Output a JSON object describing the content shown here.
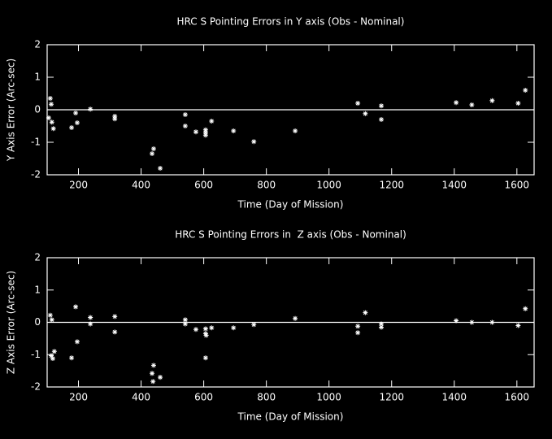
{
  "chart_data": [
    {
      "type": "scatter",
      "title": "HRC S Pointing Errors in Y axis (Obs - Nominal)",
      "x_label": "Time (Day of Mission)",
      "y_label": "Y Axis Error (Arc-sec)",
      "x": [
        110,
        113,
        115,
        105,
        120,
        178,
        191,
        196,
        238,
        316,
        316,
        435,
        440,
        461,
        541,
        541,
        575,
        606,
        606,
        606,
        625,
        695,
        760,
        892,
        1092,
        1116,
        1167,
        1167,
        1406,
        1456,
        1521,
        1604,
        1627
      ],
      "values": [
        0.35,
        0.17,
        -0.38,
        -0.25,
        -0.58,
        -0.55,
        -0.1,
        -0.4,
        0.02,
        -0.2,
        -0.28,
        -1.35,
        -1.2,
        -1.8,
        -0.15,
        -0.5,
        -0.68,
        -0.62,
        -0.78,
        -0.7,
        -0.35,
        -0.65,
        -0.98,
        -0.65,
        0.2,
        -0.12,
        0.12,
        -0.3,
        0.22,
        0.15,
        0.28,
        0.2,
        0.6
      ],
      "color": "#ffffff",
      "xlim": [
        100,
        1655
      ],
      "ylim": [
        -2,
        2
      ],
      "xticks": [
        200,
        400,
        600,
        800,
        1000,
        1200,
        1400,
        1600
      ],
      "yticks": [
        -2,
        -1,
        0,
        1,
        2
      ],
      "reference_line": 0
    },
    {
      "type": "scatter",
      "title": "HRC S Pointing Errors in  Z axis (Obs - Nominal)",
      "x_label": "Time (Day of Mission)",
      "y_label": "Z Axis Error (Arc-sec)",
      "x": [
        110,
        115,
        113,
        123,
        118,
        178,
        191,
        196,
        238,
        238,
        316,
        316,
        440,
        435,
        438,
        461,
        541,
        541,
        575,
        606,
        606,
        608,
        606,
        625,
        695,
        760,
        892,
        1092,
        1092,
        1116,
        1167,
        1167,
        1406,
        1456,
        1521,
        1604,
        1627
      ],
      "values": [
        0.22,
        0.08,
        -1.03,
        -0.9,
        -1.12,
        -1.1,
        0.48,
        -0.6,
        0.15,
        -0.05,
        0.18,
        -0.3,
        -1.33,
        -1.58,
        -1.83,
        -1.7,
        0.08,
        -0.05,
        -0.22,
        -0.2,
        -0.35,
        -0.4,
        -1.1,
        -0.17,
        -0.17,
        -0.07,
        0.12,
        -0.12,
        -0.32,
        0.3,
        -0.05,
        -0.15,
        0.05,
        0.0,
        0.0,
        -0.1,
        0.42
      ],
      "color": "#ffffff",
      "xlim": [
        100,
        1655
      ],
      "ylim": [
        -2,
        2
      ],
      "xticks": [
        200,
        400,
        600,
        800,
        1000,
        1200,
        1400,
        1600
      ],
      "yticks": [
        -2,
        -1,
        0,
        1,
        2
      ],
      "reference_line": 0
    }
  ]
}
